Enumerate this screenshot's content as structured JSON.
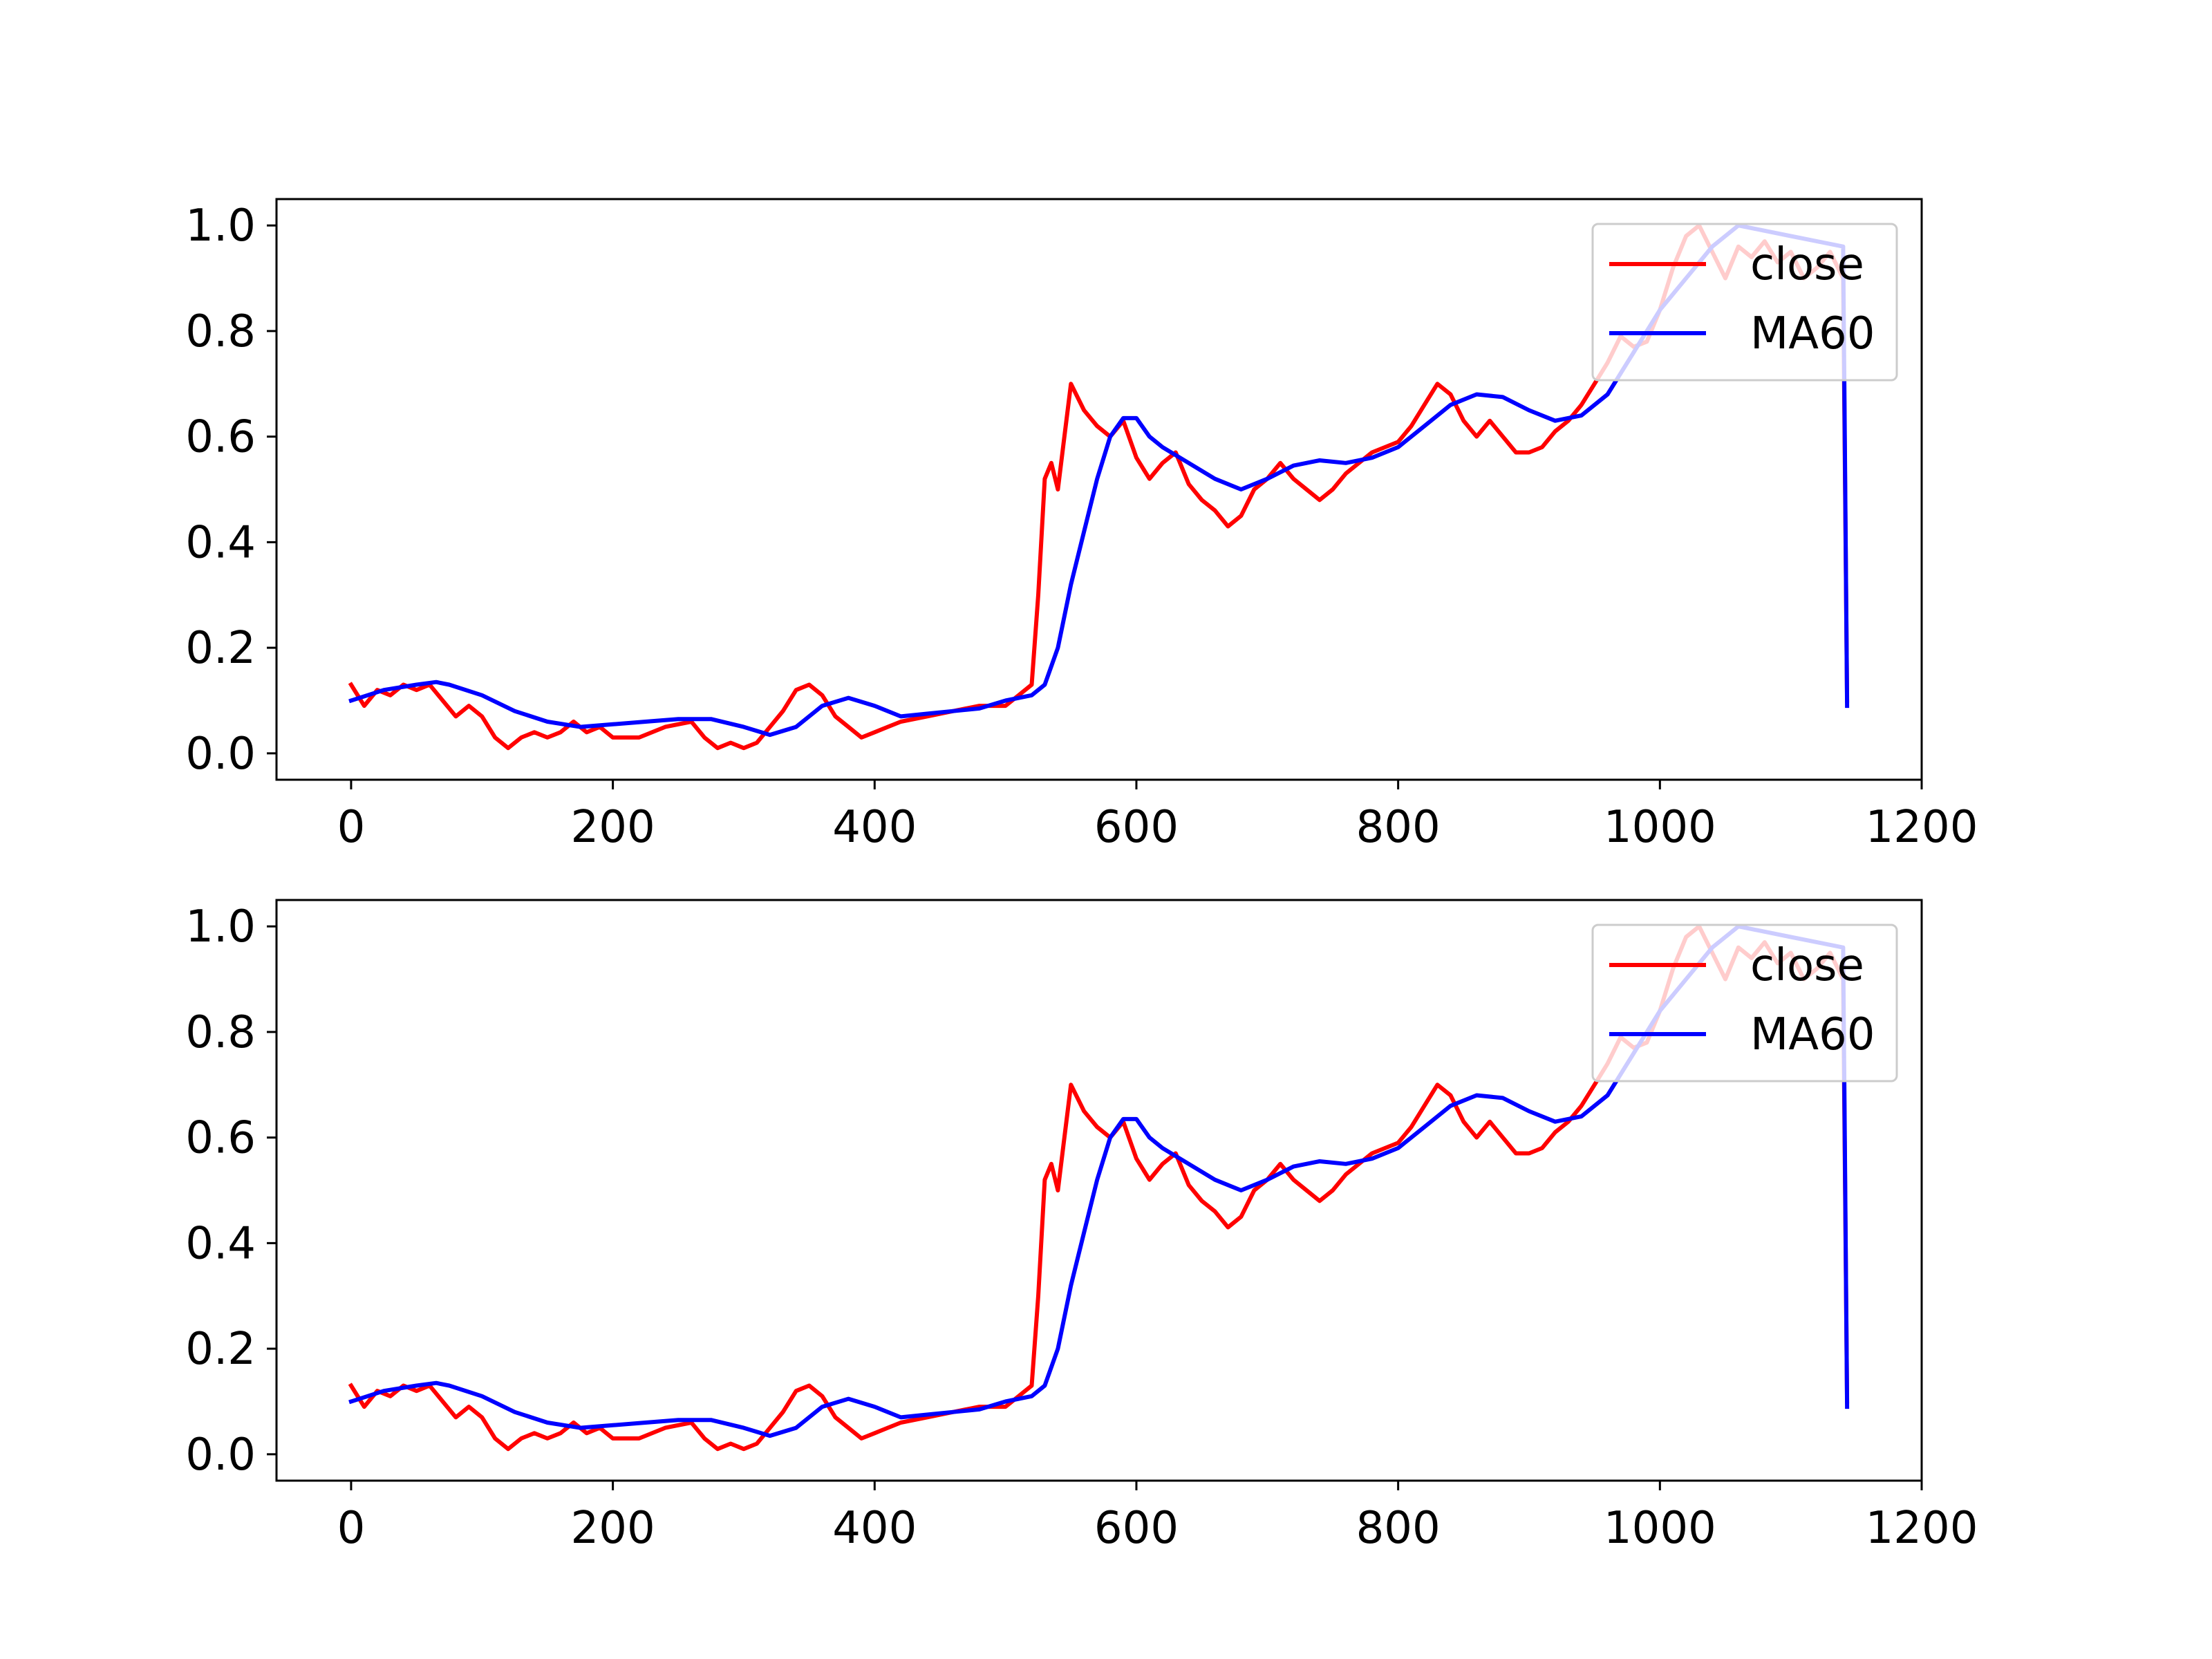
{
  "chart_data": [
    {
      "type": "line",
      "title": "",
      "xlabel": "",
      "ylabel": "",
      "xlim": [
        -57,
        1200
      ],
      "ylim": [
        -0.05,
        1.05
      ],
      "xticks": [
        0,
        200,
        400,
        600,
        800,
        1000,
        1200
      ],
      "yticks": [
        0.0,
        0.2,
        0.4,
        0.6,
        0.8,
        1.0
      ],
      "xtick_labels": [
        "0",
        "200",
        "400",
        "600",
        "800",
        "1000",
        "1200"
      ],
      "ytick_labels": [
        "0.0",
        "0.2",
        "0.4",
        "0.6",
        "0.8",
        "1.0"
      ],
      "legend": {
        "position": "upper right",
        "entries": [
          "close",
          "MA60"
        ]
      },
      "series": [
        {
          "name": "close",
          "color": "#ff0000",
          "x": [
            0,
            10,
            20,
            30,
            40,
            50,
            60,
            70,
            80,
            90,
            100,
            110,
            120,
            130,
            140,
            150,
            160,
            170,
            180,
            190,
            200,
            220,
            240,
            260,
            270,
            280,
            290,
            300,
            310,
            320,
            330,
            340,
            350,
            360,
            370,
            380,
            390,
            400,
            410,
            420,
            440,
            460,
            480,
            500,
            510,
            520,
            525,
            530,
            535,
            540,
            545,
            550,
            560,
            570,
            580,
            590,
            600,
            610,
            620,
            630,
            640,
            650,
            660,
            670,
            680,
            690,
            700,
            710,
            720,
            730,
            740,
            750,
            760,
            770,
            780,
            790,
            800,
            810,
            820,
            830,
            840,
            850,
            860,
            870,
            880,
            890,
            900,
            910,
            920,
            930,
            940,
            950,
            960,
            970,
            980,
            990,
            1000,
            1010,
            1020,
            1030,
            1040,
            1050,
            1060,
            1070,
            1080,
            1090,
            1100,
            1110,
            1120,
            1130,
            1140,
            1143
          ],
          "y": [
            0.13,
            0.09,
            0.12,
            0.11,
            0.13,
            0.12,
            0.13,
            0.1,
            0.07,
            0.09,
            0.07,
            0.03,
            0.01,
            0.03,
            0.04,
            0.03,
            0.04,
            0.06,
            0.04,
            0.05,
            0.03,
            0.03,
            0.05,
            0.06,
            0.03,
            0.01,
            0.02,
            0.01,
            0.02,
            0.05,
            0.08,
            0.12,
            0.13,
            0.11,
            0.07,
            0.05,
            0.03,
            0.04,
            0.05,
            0.06,
            0.07,
            0.08,
            0.09,
            0.09,
            0.11,
            0.13,
            0.3,
            0.52,
            0.55,
            0.5,
            0.6,
            0.7,
            0.65,
            0.62,
            0.6,
            0.63,
            0.56,
            0.52,
            0.55,
            0.57,
            0.51,
            0.48,
            0.46,
            0.43,
            0.45,
            0.5,
            0.52,
            0.55,
            0.52,
            0.5,
            0.48,
            0.5,
            0.53,
            0.55,
            0.57,
            0.58,
            0.59,
            0.62,
            0.66,
            0.7,
            0.68,
            0.63,
            0.6,
            0.63,
            0.6,
            0.57,
            0.57,
            0.58,
            0.61,
            0.63,
            0.66,
            0.7,
            0.74,
            0.79,
            0.77,
            0.78,
            0.84,
            0.92,
            0.98,
            1.0,
            0.95,
            0.9,
            0.96,
            0.94,
            0.97,
            0.93,
            0.95,
            0.9,
            0.92,
            0.95,
            0.9,
            0.1
          ]
        },
        {
          "name": "MA60",
          "color": "#0000ff",
          "x": [
            0,
            25,
            50,
            65,
            75,
            100,
            125,
            150,
            175,
            200,
            225,
            250,
            275,
            300,
            320,
            340,
            360,
            380,
            400,
            420,
            440,
            460,
            480,
            500,
            520,
            530,
            540,
            550,
            560,
            570,
            580,
            590,
            600,
            610,
            620,
            640,
            660,
            680,
            700,
            720,
            740,
            760,
            780,
            800,
            820,
            840,
            860,
            880,
            900,
            920,
            940,
            960,
            980,
            1000,
            1020,
            1040,
            1060,
            1080,
            1100,
            1120,
            1140,
            1143
          ],
          "y": [
            0.1,
            0.12,
            0.13,
            0.135,
            0.13,
            0.11,
            0.08,
            0.06,
            0.05,
            0.055,
            0.06,
            0.065,
            0.065,
            0.05,
            0.035,
            0.05,
            0.09,
            0.105,
            0.09,
            0.07,
            0.075,
            0.08,
            0.085,
            0.1,
            0.11,
            0.13,
            0.2,
            0.32,
            0.42,
            0.52,
            0.6,
            0.635,
            0.635,
            0.6,
            0.58,
            0.55,
            0.52,
            0.5,
            0.52,
            0.545,
            0.555,
            0.55,
            0.56,
            0.58,
            0.62,
            0.66,
            0.68,
            0.675,
            0.65,
            0.63,
            0.64,
            0.68,
            0.76,
            0.84,
            0.9,
            0.96,
            1.0,
            0.99,
            0.98,
            0.97,
            0.96,
            0.09
          ]
        }
      ]
    },
    {
      "type": "line",
      "title": "",
      "xlabel": "",
      "ylabel": "",
      "xlim": [
        -57,
        1200
      ],
      "ylim": [
        -0.05,
        1.05
      ],
      "xticks": [
        0,
        200,
        400,
        600,
        800,
        1000,
        1200
      ],
      "yticks": [
        0.0,
        0.2,
        0.4,
        0.6,
        0.8,
        1.0
      ],
      "xtick_labels": [
        "0",
        "200",
        "400",
        "600",
        "800",
        "1000",
        "1200"
      ],
      "ytick_labels": [
        "0.0",
        "0.2",
        "0.4",
        "0.6",
        "0.8",
        "1.0"
      ],
      "legend": {
        "position": "upper right",
        "entries": [
          "close",
          "MA60"
        ]
      },
      "series": [
        {
          "name": "close",
          "color": "#ff0000",
          "x": [
            0,
            10,
            20,
            30,
            40,
            50,
            60,
            70,
            80,
            90,
            100,
            110,
            120,
            130,
            140,
            150,
            160,
            170,
            180,
            190,
            200,
            220,
            240,
            260,
            270,
            280,
            290,
            300,
            310,
            320,
            330,
            340,
            350,
            360,
            370,
            380,
            390,
            400,
            410,
            420,
            440,
            460,
            480,
            500,
            510,
            520,
            525,
            530,
            535,
            540,
            545,
            550,
            560,
            570,
            580,
            590,
            600,
            610,
            620,
            630,
            640,
            650,
            660,
            670,
            680,
            690,
            700,
            710,
            720,
            730,
            740,
            750,
            760,
            770,
            780,
            790,
            800,
            810,
            820,
            830,
            840,
            850,
            860,
            870,
            880,
            890,
            900,
            910,
            920,
            930,
            940,
            950,
            960,
            970,
            980,
            990,
            1000,
            1010,
            1020,
            1030,
            1040,
            1050,
            1060,
            1070,
            1080,
            1090,
            1100,
            1110,
            1120,
            1130,
            1140,
            1143
          ],
          "y": [
            0.13,
            0.09,
            0.12,
            0.11,
            0.13,
            0.12,
            0.13,
            0.1,
            0.07,
            0.09,
            0.07,
            0.03,
            0.01,
            0.03,
            0.04,
            0.03,
            0.04,
            0.06,
            0.04,
            0.05,
            0.03,
            0.03,
            0.05,
            0.06,
            0.03,
            0.01,
            0.02,
            0.01,
            0.02,
            0.05,
            0.08,
            0.12,
            0.13,
            0.11,
            0.07,
            0.05,
            0.03,
            0.04,
            0.05,
            0.06,
            0.07,
            0.08,
            0.09,
            0.09,
            0.11,
            0.13,
            0.3,
            0.52,
            0.55,
            0.5,
            0.6,
            0.7,
            0.65,
            0.62,
            0.6,
            0.63,
            0.56,
            0.52,
            0.55,
            0.57,
            0.51,
            0.48,
            0.46,
            0.43,
            0.45,
            0.5,
            0.52,
            0.55,
            0.52,
            0.5,
            0.48,
            0.5,
            0.53,
            0.55,
            0.57,
            0.58,
            0.59,
            0.62,
            0.66,
            0.7,
            0.68,
            0.63,
            0.6,
            0.63,
            0.6,
            0.57,
            0.57,
            0.58,
            0.61,
            0.63,
            0.66,
            0.7,
            0.74,
            0.79,
            0.77,
            0.78,
            0.84,
            0.92,
            0.98,
            1.0,
            0.95,
            0.9,
            0.96,
            0.94,
            0.97,
            0.93,
            0.95,
            0.9,
            0.92,
            0.95,
            0.9,
            0.1
          ]
        },
        {
          "name": "MA60",
          "color": "#0000ff",
          "x": [
            0,
            25,
            50,
            65,
            75,
            100,
            125,
            150,
            175,
            200,
            225,
            250,
            275,
            300,
            320,
            340,
            360,
            380,
            400,
            420,
            440,
            460,
            480,
            500,
            520,
            530,
            540,
            550,
            560,
            570,
            580,
            590,
            600,
            610,
            620,
            640,
            660,
            680,
            700,
            720,
            740,
            760,
            780,
            800,
            820,
            840,
            860,
            880,
            900,
            920,
            940,
            960,
            980,
            1000,
            1020,
            1040,
            1060,
            1080,
            1100,
            1120,
            1140,
            1143
          ],
          "y": [
            0.1,
            0.12,
            0.13,
            0.135,
            0.13,
            0.11,
            0.08,
            0.06,
            0.05,
            0.055,
            0.06,
            0.065,
            0.065,
            0.05,
            0.035,
            0.05,
            0.09,
            0.105,
            0.09,
            0.07,
            0.075,
            0.08,
            0.085,
            0.1,
            0.11,
            0.13,
            0.2,
            0.32,
            0.42,
            0.52,
            0.6,
            0.635,
            0.635,
            0.6,
            0.58,
            0.55,
            0.52,
            0.5,
            0.52,
            0.545,
            0.555,
            0.55,
            0.56,
            0.58,
            0.62,
            0.66,
            0.68,
            0.675,
            0.65,
            0.63,
            0.64,
            0.68,
            0.76,
            0.84,
            0.9,
            0.96,
            1.0,
            0.99,
            0.98,
            0.97,
            0.96,
            0.09
          ]
        }
      ]
    }
  ]
}
